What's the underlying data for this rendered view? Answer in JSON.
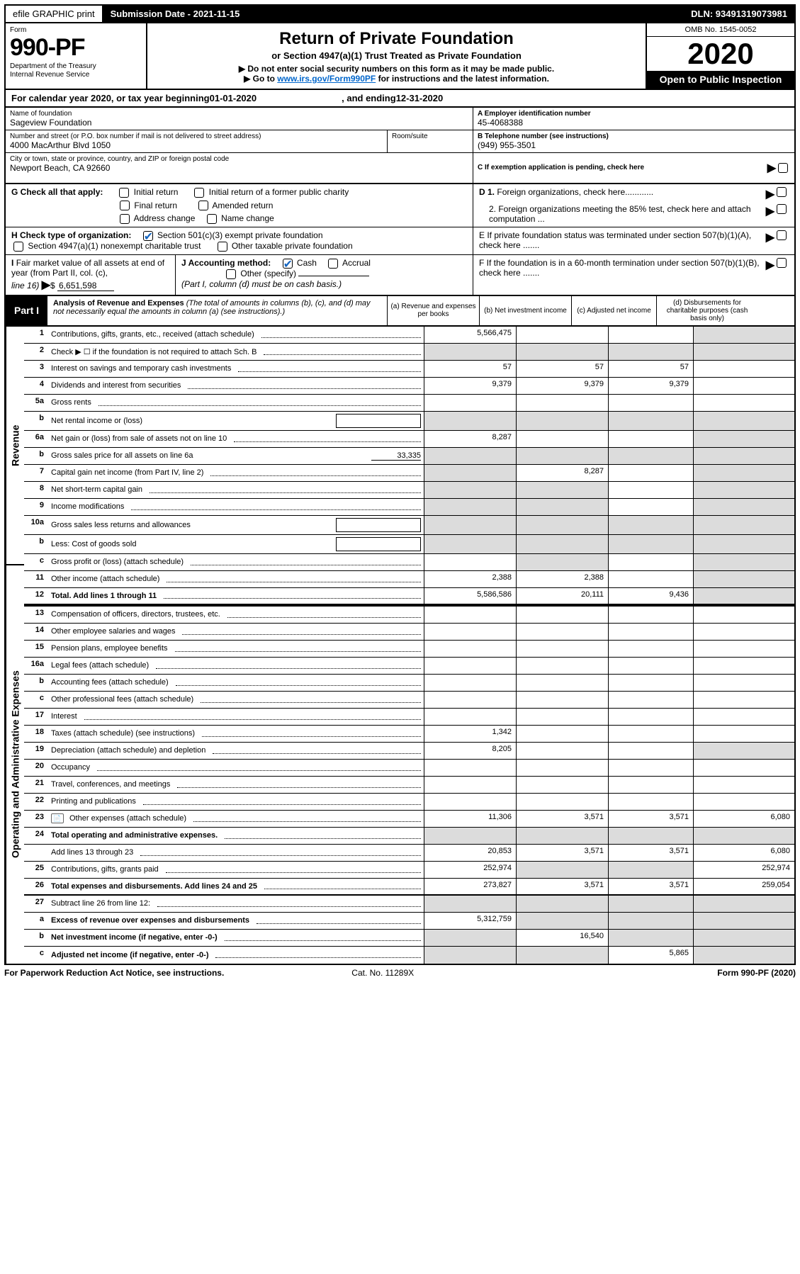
{
  "topbar": {
    "efile": "efile GRAPHIC print",
    "sub_label": "Submission Date - 2021-11-15",
    "dln": "DLN: 93491319073981"
  },
  "header": {
    "form": "Form",
    "form_no": "990-PF",
    "dept1": "Department of the Treasury",
    "dept2": "Internal Revenue Service",
    "title": "Return of Private Foundation",
    "subtitle": "or Section 4947(a)(1) Trust Treated as Private Foundation",
    "instr1": "▶ Do not enter social security numbers on this form as it may be made public.",
    "instr2_pre": "▶ Go to ",
    "instr2_link": "www.irs.gov/Form990PF",
    "instr2_post": " for instructions and the latest information.",
    "omb": "OMB No. 1545-0052",
    "year": "2020",
    "open": "Open to Public Inspection"
  },
  "period": {
    "pre": "For calendar year 2020, or tax year beginning ",
    "begin": "01-01-2020",
    "mid": ", and ending ",
    "end": "12-31-2020"
  },
  "org": {
    "name_lbl": "Name of foundation",
    "name": "Sageview Foundation",
    "addr_lbl": "Number and street (or P.O. box number if mail is not delivered to street address)",
    "addr": "4000 MacArthur Blvd 1050",
    "room_lbl": "Room/suite",
    "room": "",
    "city_lbl": "City or town, state or province, country, and ZIP or foreign postal code",
    "city": "Newport Beach, CA  92660"
  },
  "right": {
    "a_lbl": "A Employer identification number",
    "a_val": "45-4068388",
    "b_lbl": "B Telephone number (see instructions)",
    "b_val": "(949) 955-3501",
    "c_lbl": "C If exemption application is pending, check here",
    "d1_lbl": "D 1. Foreign organizations, check here............",
    "d2_lbl": "2. Foreign organizations meeting the 85% test, check here and attach computation ...",
    "e_lbl": "E  If private foundation status was terminated under section 507(b)(1)(A), check here .......",
    "f_lbl": "F  If the foundation is in a 60-month termination under section 507(b)(1)(B), check here ......."
  },
  "g": {
    "lbl": "G Check all that apply:",
    "o1": "Initial return",
    "o2": "Initial return of a former public charity",
    "o3": "Final return",
    "o4": "Amended return",
    "o5": "Address change",
    "o6": "Name change"
  },
  "h": {
    "lbl": "H Check type of organization:",
    "o1": "Section 501(c)(3) exempt private foundation",
    "o2": "Section 4947(a)(1) nonexempt charitable trust",
    "o3": "Other taxable private foundation"
  },
  "i": {
    "lbl": "I Fair market value of all assets at end of year (from Part II, col. (c), line 16)",
    "val_pre": "▶$ ",
    "val": "6,651,598"
  },
  "j": {
    "lbl": "J Accounting method:",
    "o1": "Cash",
    "o2": "Accrual",
    "o3": "Other (specify)",
    "note": "(Part I, column (d) must be on cash basis.)"
  },
  "part1": {
    "badge": "Part I",
    "title": "Analysis of Revenue and Expenses",
    "note": " (The total of amounts in columns (b), (c), and (d) may not necessarily equal the amounts in column (a) (see instructions).)",
    "ca": "(a)   Revenue and expenses per books",
    "cb": "(b)   Net investment income",
    "cc": "(c)   Adjusted net income",
    "cd": "(d)   Disbursements for charitable purposes (cash basis only)"
  },
  "sections": {
    "revenue": "Revenue",
    "expenses": "Operating and Administrative Expenses"
  },
  "lines": {
    "1": {
      "n": "1",
      "t": "Contributions, gifts, grants, etc., received (attach schedule)",
      "a": "5,566,475"
    },
    "2": {
      "n": "2",
      "t": "Check ▶ ☐ if the foundation is not required to attach Sch. B"
    },
    "3": {
      "n": "3",
      "t": "Interest on savings and temporary cash investments",
      "a": "57",
      "b": "57",
      "c": "57"
    },
    "4": {
      "n": "4",
      "t": "Dividends and interest from securities",
      "a": "9,379",
      "b": "9,379",
      "c": "9,379"
    },
    "5a": {
      "n": "5a",
      "t": "Gross rents"
    },
    "5b": {
      "n": "b",
      "t": "Net rental income or (loss)",
      "inset": ""
    },
    "6a": {
      "n": "6a",
      "t": "Net gain or (loss) from sale of assets not on line 10",
      "a": "8,287"
    },
    "6b": {
      "n": "b",
      "t": "Gross sales price for all assets on line 6a",
      "val": "33,335"
    },
    "7": {
      "n": "7",
      "t": "Capital gain net income (from Part IV, line 2)",
      "b": "8,287"
    },
    "8": {
      "n": "8",
      "t": "Net short-term capital gain"
    },
    "9": {
      "n": "9",
      "t": "Income modifications"
    },
    "10a": {
      "n": "10a",
      "t": "Gross sales less returns and allowances",
      "inset": ""
    },
    "10b": {
      "n": "b",
      "t": "Less: Cost of goods sold",
      "inset": ""
    },
    "10c": {
      "n": "c",
      "t": "Gross profit or (loss) (attach schedule)"
    },
    "11": {
      "n": "11",
      "t": "Other income (attach schedule)",
      "a": "2,388",
      "b": "2,388"
    },
    "12": {
      "n": "12",
      "t": "Total. Add lines 1 through 11",
      "a": "5,586,586",
      "b": "20,111",
      "c": "9,436",
      "bold": true
    },
    "13": {
      "n": "13",
      "t": "Compensation of officers, directors, trustees, etc."
    },
    "14": {
      "n": "14",
      "t": "Other employee salaries and wages"
    },
    "15": {
      "n": "15",
      "t": "Pension plans, employee benefits"
    },
    "16a": {
      "n": "16a",
      "t": "Legal fees (attach schedule)"
    },
    "16b": {
      "n": "b",
      "t": "Accounting fees (attach schedule)"
    },
    "16c": {
      "n": "c",
      "t": "Other professional fees (attach schedule)"
    },
    "17": {
      "n": "17",
      "t": "Interest"
    },
    "18": {
      "n": "18",
      "t": "Taxes (attach schedule) (see instructions)",
      "a": "1,342"
    },
    "19": {
      "n": "19",
      "t": "Depreciation (attach schedule) and depletion",
      "a": "8,205"
    },
    "20": {
      "n": "20",
      "t": "Occupancy"
    },
    "21": {
      "n": "21",
      "t": "Travel, conferences, and meetings"
    },
    "22": {
      "n": "22",
      "t": "Printing and publications"
    },
    "23": {
      "n": "23",
      "t": "Other expenses (attach schedule)",
      "icon": true,
      "a": "11,306",
      "b": "3,571",
      "c": "3,571",
      "d": "6,080"
    },
    "24": {
      "n": "24",
      "t": "Total operating and administrative expenses.",
      "bold": true
    },
    "24b": {
      "n": "",
      "t": "Add lines 13 through 23",
      "a": "20,853",
      "b": "3,571",
      "c": "3,571",
      "d": "6,080"
    },
    "25": {
      "n": "25",
      "t": "Contributions, gifts, grants paid",
      "a": "252,974",
      "d": "252,974"
    },
    "26": {
      "n": "26",
      "t": "Total expenses and disbursements. Add lines 24 and 25",
      "bold": true,
      "a": "273,827",
      "b": "3,571",
      "c": "3,571",
      "d": "259,054"
    },
    "27": {
      "n": "27",
      "t": "Subtract line 26 from line 12:"
    },
    "27a": {
      "n": "a",
      "t": "Excess of revenue over expenses and disbursements",
      "bold": true,
      "a": "5,312,759"
    },
    "27b": {
      "n": "b",
      "t": "Net investment income (if negative, enter -0-)",
      "bold": true,
      "b": "16,540"
    },
    "27c": {
      "n": "c",
      "t": "Adjusted net income (if negative, enter -0-)",
      "bold": true,
      "c": "5,865"
    }
  },
  "greys": {
    "1": [
      "d"
    ],
    "2": [
      "a",
      "b",
      "c",
      "d"
    ],
    "5b": [
      "a",
      "b",
      "c",
      "d"
    ],
    "6a": [
      "d"
    ],
    "6b": [
      "a",
      "b",
      "c",
      "d"
    ],
    "7": [
      "a",
      "d"
    ],
    "8": [
      "a",
      "b",
      "d"
    ],
    "9": [
      "a",
      "b",
      "d"
    ],
    "10a": [
      "a",
      "b",
      "c",
      "d"
    ],
    "10b": [
      "a",
      "b",
      "c",
      "d"
    ],
    "10c": [
      "b",
      "d"
    ],
    "11": [
      "d"
    ],
    "12": [
      "d"
    ],
    "19": [
      "d"
    ],
    "24": [
      "a",
      "b",
      "c",
      "d"
    ],
    "25": [
      "b",
      "c"
    ],
    "27": [
      "a",
      "b",
      "c",
      "d"
    ],
    "27a": [
      "b",
      "c",
      "d"
    ],
    "27b": [
      "a",
      "c",
      "d"
    ],
    "27c": [
      "a",
      "b",
      "d"
    ]
  },
  "footer": {
    "left": "For Paperwork Reduction Act Notice, see instructions.",
    "mid": "Cat. No. 11289X",
    "right": "Form 990-PF (2020)"
  },
  "colors": {
    "black": "#000000",
    "white": "#ffffff",
    "grey": "#dcdcdc",
    "link": "#0066cc",
    "check": "#1565c0"
  }
}
